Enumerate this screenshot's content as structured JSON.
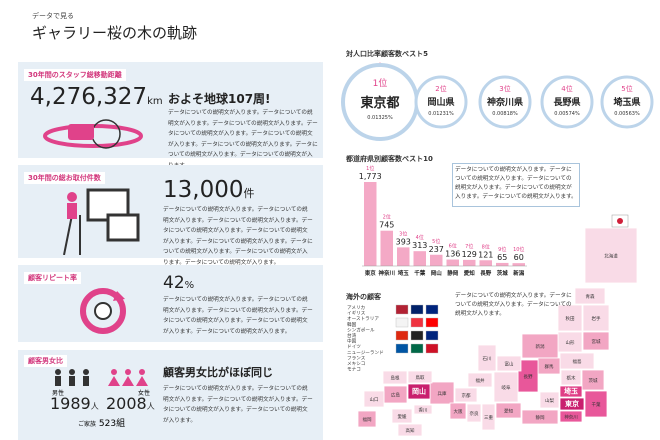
{
  "header": {
    "kicker": "データで見る",
    "title": "ギャラリー桜の木の軌跡"
  },
  "panels": [
    {
      "heading": "30年間のスタッフ総移動距離",
      "stat": "4,276,327",
      "unit": "km",
      "headline": "およそ地球107周!",
      "text": "データについての説明文が入ります。データについての説明文が入ります。データについての説明文が入ります。データについての説明文が入ります。データについての説明文が入ります。データについての説明文が入ります。データについての説明文が入ります。データについての説明文が入ります。"
    },
    {
      "heading": "30年間の総お取付件数",
      "stat": "13,000",
      "unit": "件",
      "text": "データについての説明文が入ります。データについての説明文が入ります。データについての説明文が入ります。データについての説明文が入ります。データについての説明文が入ります。データについての説明文が入ります。データについての説明文が入ります。データについての説明文が入ります。データについての説明文が入ります。"
    },
    {
      "heading": "顧客リピート率",
      "stat": "42",
      "unit": "%",
      "text": "データについての説明文が入ります。データについての説明文が入ります。データについての説明文が入ります。データについての説明文が入ります。データについての説明文が入ります。データについての説明文が入ります。"
    },
    {
      "heading": "顧客男女比",
      "headline": "顧客男女比がほぼ同じ",
      "male_label": "男性",
      "male": "1989",
      "male_unit": "人",
      "female_label": "女性",
      "female": "2008",
      "female_unit": "人",
      "family_label": "ご家族",
      "family": "523組",
      "text": "データについての説明文が入ります。データについての説明文が入ります。データについての説明文が入ります。データについての説明文が入ります。データについての説明文が入ります。"
    }
  ],
  "ranking": {
    "title": "対人口比率顧客数ベスト5",
    "items": [
      {
        "rank": "1位",
        "name": "東京都",
        "ratio": "0.01325%"
      },
      {
        "rank": "2位",
        "name": "岡山県",
        "ratio": "0.01231%"
      },
      {
        "rank": "3位",
        "name": "神奈川県",
        "ratio": "0.00818%"
      },
      {
        "rank": "4位",
        "name": "長野県",
        "ratio": "0.00574%"
      },
      {
        "rank": "5位",
        "name": "埼玉県",
        "ratio": "0.00563%"
      }
    ]
  },
  "bar_chart": {
    "type": "bar",
    "title": "都道府県別顧客数ベスト10",
    "ranks": [
      "1位",
      "2位",
      "3位",
      "4位",
      "5位",
      "6位",
      "7位",
      "8位",
      "9位",
      "10位"
    ],
    "categories": [
      "東京",
      "神奈川",
      "埼玉",
      "千葉",
      "岡山",
      "静岡",
      "愛知",
      "長野",
      "茨城",
      "新潟"
    ],
    "values": [
      1773,
      745,
      393,
      313,
      237,
      136,
      129,
      121,
      65,
      60
    ],
    "value_labels": [
      "1,773",
      "745",
      "393",
      "313",
      "237",
      "136",
      "129",
      "121",
      "65",
      "60"
    ],
    "color": "#f4a9c6",
    "note": "データについての説明文が入ります。データについての説明文が入ります。データについての説明文が入ります。データについての説明文が入ります。データについての説明文が入ります。"
  },
  "overseas": {
    "title": "海外の顧客",
    "countries": [
      "アメリカ",
      "イギリス",
      "オーストラリア",
      "韓国",
      "シンガポール",
      "台湾",
      "中国",
      "ドイツ",
      "ニュージーランド",
      "フランス",
      "メキシコ",
      "モナコ"
    ],
    "note": "データについての説明文が入ります。データについての説明文が入ります。データについての説明文が入ります。"
  },
  "map": {
    "regions": [
      {
        "name": "北海道",
        "color": "#f9dbe7"
      },
      {
        "name": "青森",
        "color": "#f9dbe7"
      },
      {
        "name": "秋田",
        "color": "#f9dbe7"
      },
      {
        "name": "岩手",
        "color": "#f9dbe7"
      },
      {
        "name": "山形",
        "color": "#f9dbe7"
      },
      {
        "name": "宮城",
        "color": "#f2a6c3"
      },
      {
        "name": "新潟",
        "color": "#f2a6c3"
      },
      {
        "name": "福島",
        "color": "#f9dbe7"
      },
      {
        "name": "群馬",
        "color": "#f2a6c3"
      },
      {
        "name": "栃木",
        "color": "#f9dbe7"
      },
      {
        "name": "茨城",
        "color": "#f2a6c3"
      },
      {
        "name": "長野",
        "color": "#e8579a"
      },
      {
        "name": "埼玉",
        "color": "#e03d86"
      },
      {
        "name": "東京",
        "color": "#c91f6e"
      },
      {
        "name": "千葉",
        "color": "#e8579a"
      },
      {
        "name": "神奈川",
        "color": "#e8579a"
      },
      {
        "name": "山梨",
        "color": "#f9dbe7"
      },
      {
        "name": "静岡",
        "color": "#f2a6c3"
      },
      {
        "name": "愛知",
        "color": "#f2a6c3"
      },
      {
        "name": "岐阜",
        "color": "#f9dbe7"
      },
      {
        "name": "富山",
        "color": "#f9dbe7"
      },
      {
        "name": "石川",
        "color": "#f9dbe7"
      },
      {
        "name": "福井",
        "color": "#f9dbe7"
      },
      {
        "name": "京都",
        "color": "#f9dbe7"
      },
      {
        "name": "兵庫",
        "color": "#f2a6c3"
      },
      {
        "name": "大阪",
        "color": "#f2a6c3"
      },
      {
        "name": "奈良",
        "color": "#f9dbe7"
      },
      {
        "name": "三重",
        "color": "#f9dbe7"
      },
      {
        "name": "鳥取",
        "color": "#f9dbe7"
      },
      {
        "name": "岡山",
        "color": "#c91f6e"
      },
      {
        "name": "島根",
        "color": "#f9dbe7"
      },
      {
        "name": "広島",
        "color": "#f2a6c3"
      },
      {
        "name": "山口",
        "color": "#f9dbe7"
      },
      {
        "name": "香川",
        "color": "#f9dbe7"
      },
      {
        "name": "愛媛",
        "color": "#f9dbe7"
      },
      {
        "name": "高知",
        "color": "#f9dbe7"
      },
      {
        "name": "福岡",
        "color": "#f2a6c3"
      }
    ]
  }
}
